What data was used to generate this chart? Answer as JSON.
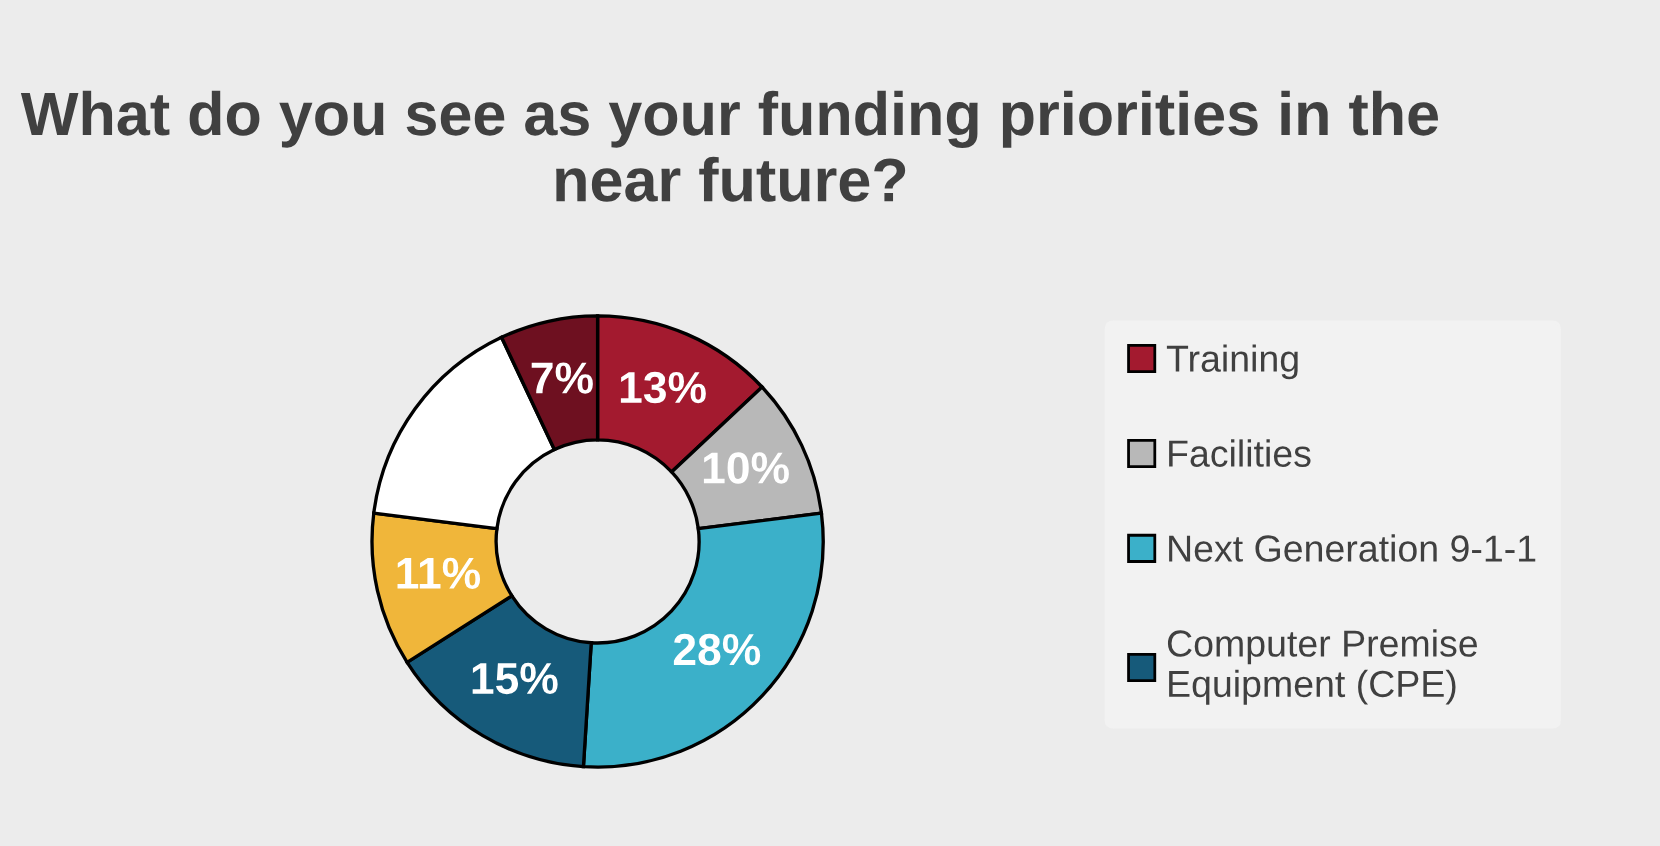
{
  "chart_data": {
    "type": "donut",
    "title": "What do you see as your funding priorities in the near future?",
    "categories": [
      "Training",
      "Facilities",
      "Next Generation 9-1-1",
      "Computer Premise Equipment (CPE)",
      null,
      null,
      null
    ],
    "values": [
      13,
      10,
      28,
      15,
      11,
      16,
      7
    ],
    "colors": [
      "#a31a2f",
      "#b8b8b8",
      "#3bb0c9",
      "#165a7a",
      "#f0b63a",
      "#ffffff",
      "#6e1020"
    ],
    "value_labels": [
      "13%",
      "10%",
      "28%",
      "15%",
      "11%",
      null,
      "7%"
    ],
    "legend": "right"
  }
}
